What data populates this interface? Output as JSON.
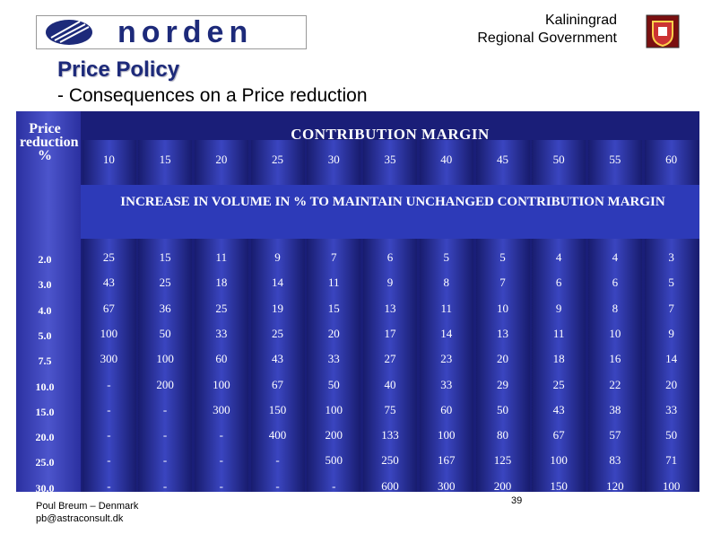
{
  "header": {
    "logo_text": "norden",
    "org_line1": "Kaliningrad",
    "org_line2": "Regional Government"
  },
  "title": "Price Policy",
  "subtitle": "- Consequences on a Price reduction",
  "table": {
    "row_header": "Price reduction %",
    "column_group": "CONTRIBUTION MARGIN",
    "columns": [
      10,
      15,
      20,
      25,
      30,
      35,
      40,
      45,
      50,
      55,
      60
    ],
    "body_caption": "INCREASE IN VOLUME IN % TO MAINTAIN UNCHANGED CONTRIBUTION MARGIN",
    "row_labels": [
      "2.0",
      "3.0",
      "4.0",
      "5.0",
      "7.5",
      "10.0",
      "15.0",
      "20.0",
      "25.0",
      "30.0"
    ],
    "rows": [
      [
        25,
        15,
        11,
        9,
        7,
        6,
        5,
        5,
        4,
        4,
        3
      ],
      [
        43,
        25,
        18,
        14,
        11,
        9,
        8,
        7,
        6,
        6,
        5
      ],
      [
        67,
        36,
        25,
        19,
        15,
        13,
        11,
        10,
        9,
        8,
        7
      ],
      [
        100,
        50,
        33,
        25,
        20,
        17,
        14,
        13,
        11,
        10,
        9
      ],
      [
        300,
        100,
        60,
        43,
        33,
        27,
        23,
        20,
        18,
        16,
        14
      ],
      [
        "-",
        200,
        100,
        67,
        50,
        40,
        33,
        29,
        25,
        22,
        20
      ],
      [
        "-",
        "-",
        300,
        150,
        100,
        75,
        60,
        50,
        43,
        38,
        33
      ],
      [
        "-",
        "-",
        "-",
        400,
        200,
        133,
        100,
        80,
        67,
        57,
        50
      ],
      [
        "-",
        "-",
        "-",
        "-",
        500,
        250,
        167,
        125,
        100,
        83,
        71
      ],
      [
        "-",
        "-",
        "-",
        "-",
        "-",
        600,
        300,
        200,
        150,
        120,
        100
      ]
    ]
  },
  "footer": {
    "author": "Poul Breum – Denmark",
    "email": "pb@astraconsult.dk",
    "page": "39"
  }
}
